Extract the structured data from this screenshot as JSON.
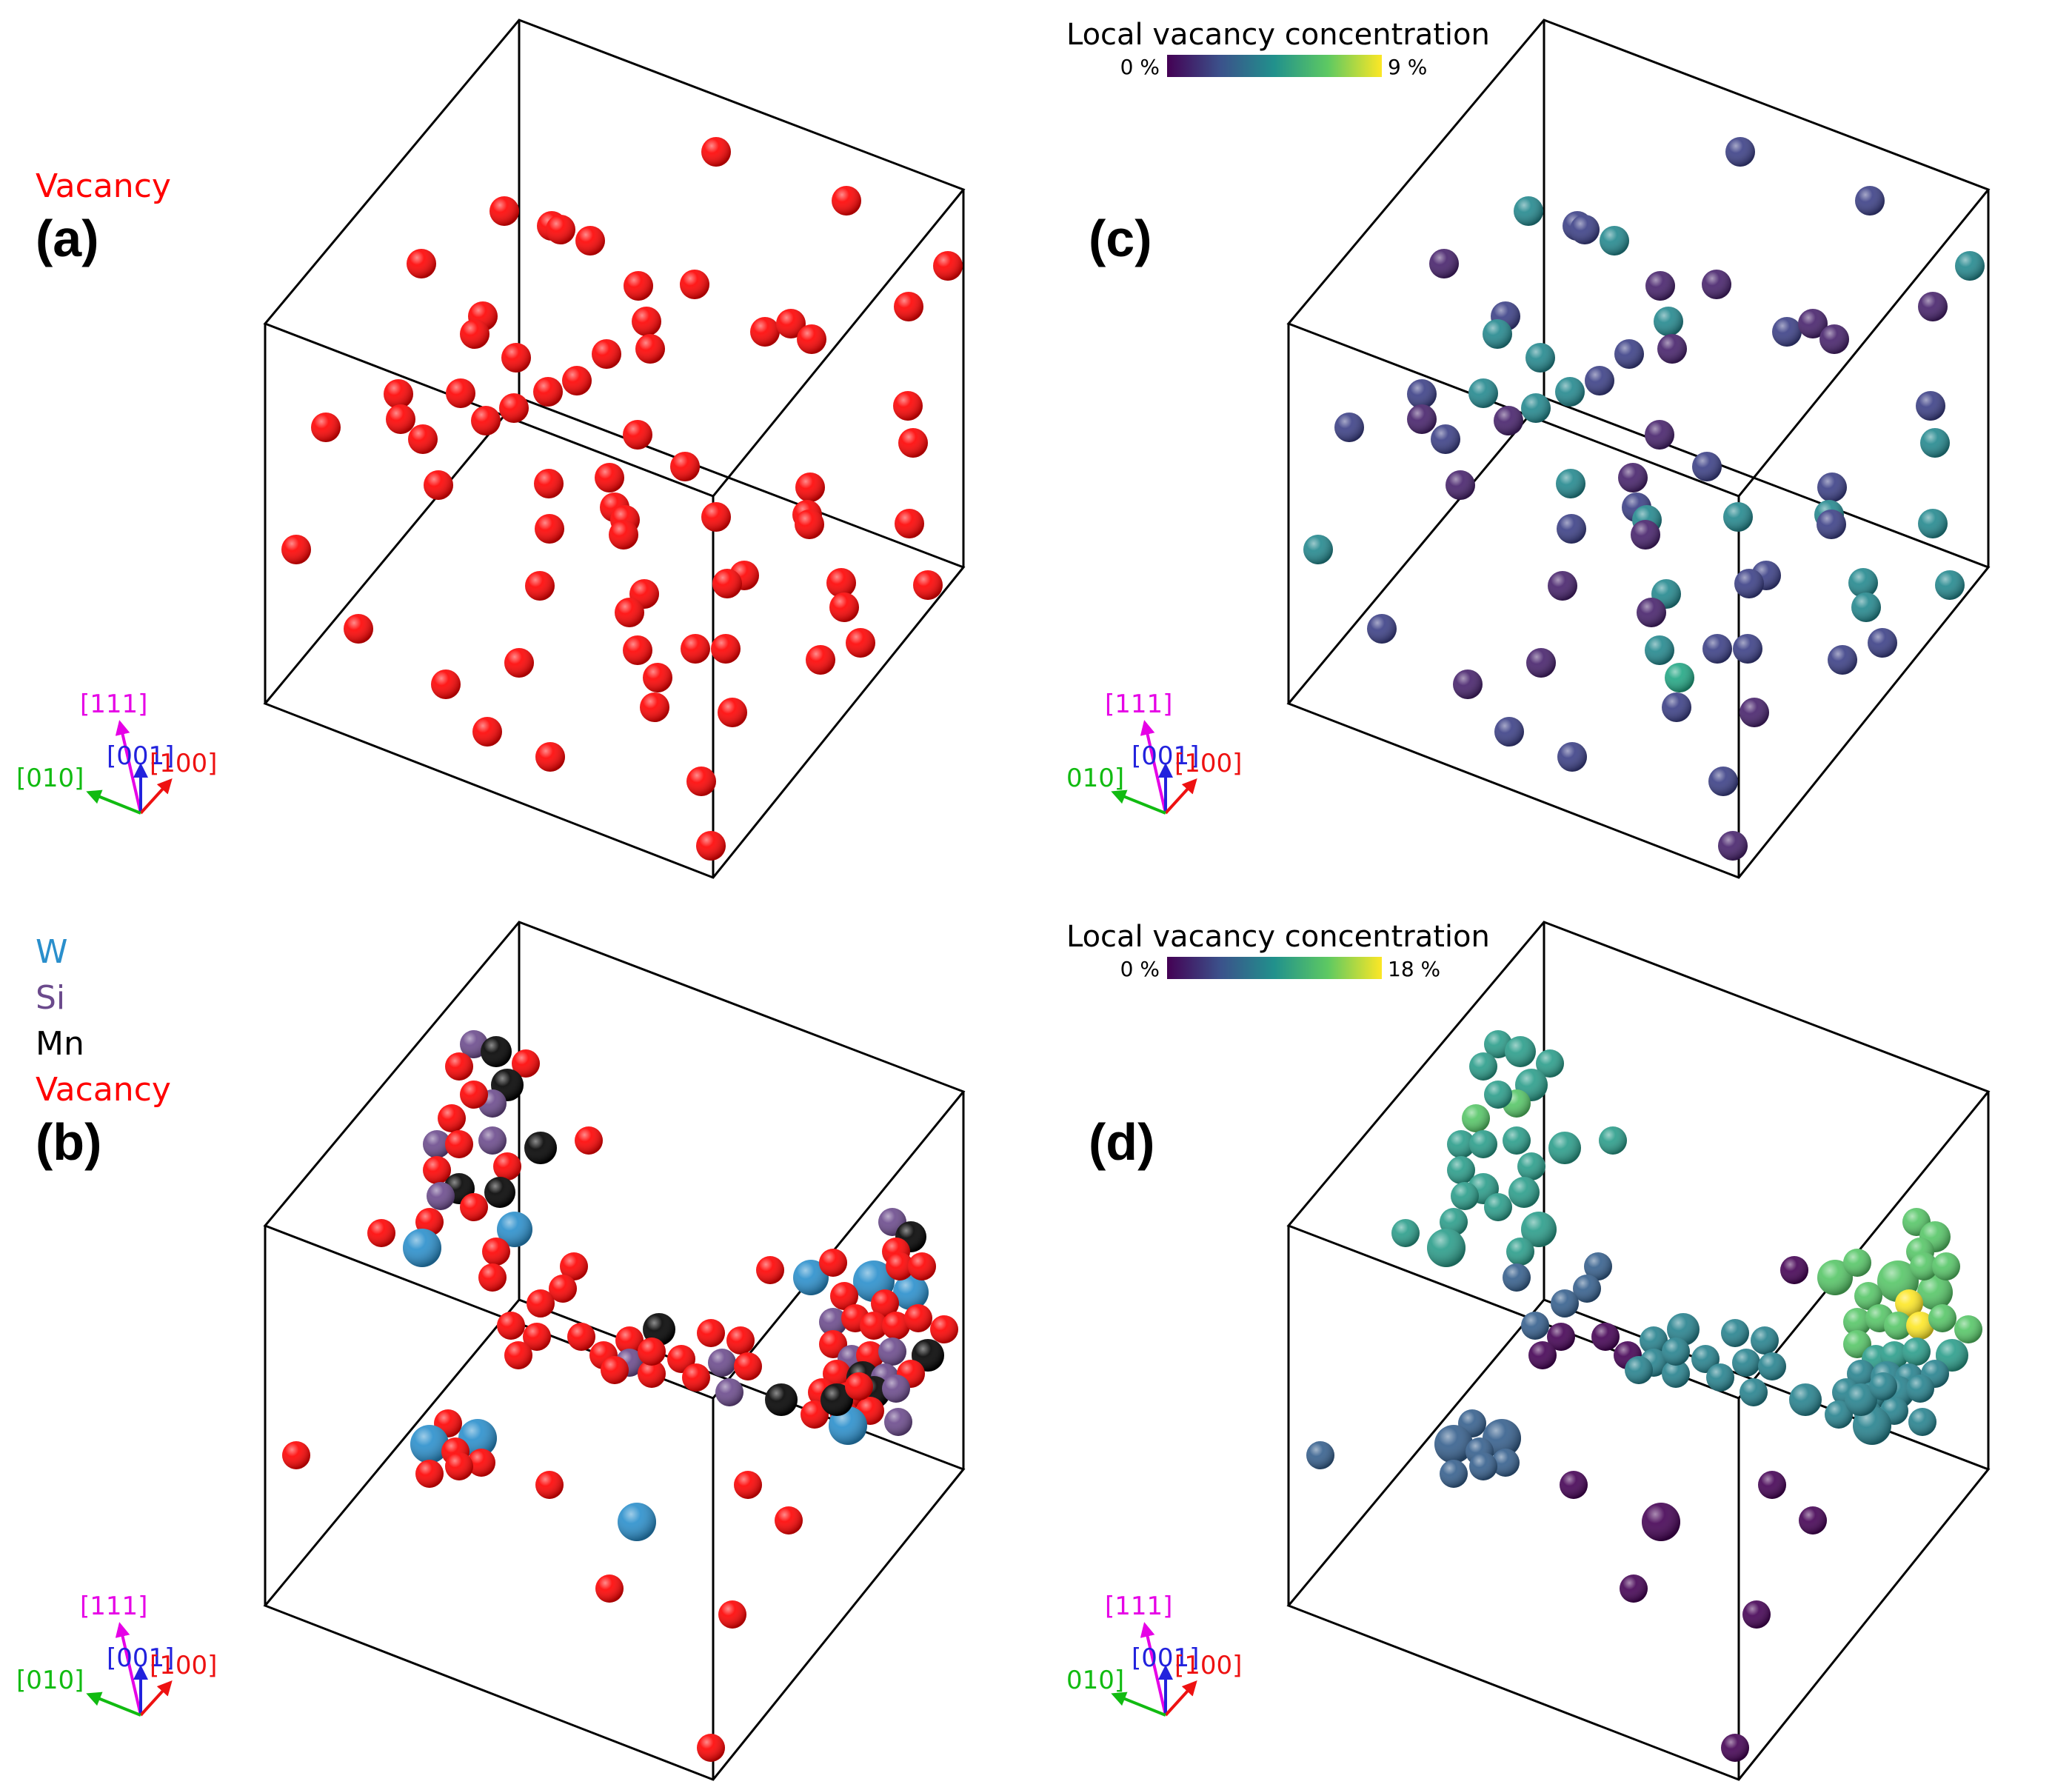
{
  "colors": {
    "vacancy": "#ff0000",
    "W": "#2a8fcc",
    "Si": "#6b4a8c",
    "Mn": "#000000",
    "axis_111": "#e600e6",
    "axis_001": "#2222dd",
    "axis_100": "#ee1111",
    "axis_010": "#11bb11",
    "viridis": [
      "#440154",
      "#3b528b",
      "#21918c",
      "#5ec962",
      "#fde725"
    ]
  },
  "panels": [
    {
      "id": "a",
      "label": "(a)",
      "legend": [
        {
          "text": "Vacancy",
          "color": "#ff0000"
        }
      ]
    },
    {
      "id": "b",
      "label": "(b)",
      "legend": [
        {
          "text": "W",
          "color": "#2a8fcc"
        },
        {
          "text": "Si",
          "color": "#6b4a8c"
        },
        {
          "text": "Mn",
          "color": "#000000"
        },
        {
          "text": "Vacancy",
          "color": "#ff0000"
        }
      ]
    },
    {
      "id": "c",
      "label": "(c)",
      "colorbar": {
        "title": "Local vacancy concentration",
        "min_label": "0 %",
        "max_label": "9 %"
      }
    },
    {
      "id": "d",
      "label": "(d)",
      "colorbar": {
        "title": "Local vacancy concentration",
        "min_label": "0 %",
        "max_label": "18 %"
      }
    }
  ],
  "axes_triad": {
    "a111": "[111]",
    "a001": "[001]",
    "a100": "[100]",
    "a010": "[010]",
    "a010_cropped": "010]"
  }
}
